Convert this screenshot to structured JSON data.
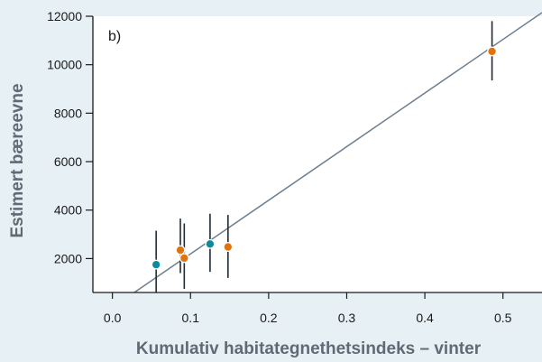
{
  "chart_data": {
    "type": "scatter",
    "panel_label": "b)",
    "xlabel": "Kumulativ habitategnethetsindeks – vinter",
    "ylabel": "Estimert bæreevne",
    "xlim": [
      -0.025,
      0.55
    ],
    "ylim": [
      600,
      12000
    ],
    "x_ticks": [
      0.0,
      0.1,
      0.2,
      0.3,
      0.4,
      0.5
    ],
    "x_tick_labels": [
      "0.0",
      "0.1",
      "0.2",
      "0.3",
      "0.4",
      "0.5"
    ],
    "y_ticks": [
      2000,
      4000,
      6000,
      8000,
      10000,
      12000
    ],
    "y_tick_labels": [
      "2000",
      "4000",
      "6000",
      "8000",
      "10000",
      "12000"
    ],
    "grid": false,
    "colors": {
      "background": "#e7f0f4",
      "plot_background": "#ffffff",
      "axis": "#1a1a1a",
      "teal": "#0e8a9c",
      "orange": "#e0730f",
      "error_bar": "#1f2a33",
      "fit_line": "#6e7f8e",
      "axis_title": "#5f6a75"
    },
    "points": [
      {
        "x": 0.056,
        "y": 1750,
        "ymin": 500,
        "ymax": 3150,
        "color": "teal"
      },
      {
        "x": 0.087,
        "y": 2350,
        "ymin": 1400,
        "ymax": 3650,
        "color": "orange"
      },
      {
        "x": 0.092,
        "y": 2020,
        "ymin": 750,
        "ymax": 3450,
        "color": "orange"
      },
      {
        "x": 0.125,
        "y": 2600,
        "ymin": 1450,
        "ymax": 3850,
        "color": "teal"
      },
      {
        "x": 0.148,
        "y": 2480,
        "ymin": 1200,
        "ymax": 3800,
        "color": "orange"
      },
      {
        "x": 0.486,
        "y": 10550,
        "ymin": 9350,
        "ymax": 11800,
        "color": "orange"
      }
    ],
    "fit_line": {
      "x": [
        0.028,
        0.55
      ],
      "y": [
        600,
        12150
      ]
    }
  }
}
